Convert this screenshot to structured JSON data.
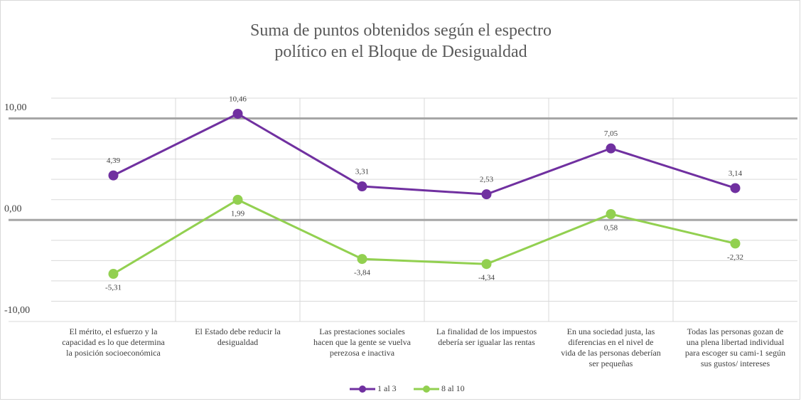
{
  "chart_data": {
    "type": "line",
    "title": "Suma de puntos obtenidos según el espectro político en el Bloque de Desigualdad",
    "categories": [
      "El mérito, el esfuerzo y la capacidad es lo que determina la posición socioeconómica",
      "El Estado debe reducir la desigualdad",
      "Las prestaciones sociales hacen que la gente se vuelva perezosa e inactiva",
      "La finalidad de los impuestos debería ser igualar las rentas",
      "En una sociedad justa, las diferencias en el nivel de vida de las personas deberían ser pequeñas",
      "Todas las personas gozan de una plena libertad individual para escoger su cami-1 según sus gustos/ intereses"
    ],
    "series": [
      {
        "name": "1 al 3",
        "color": "#7030a0",
        "values": [
          4.39,
          10.46,
          3.31,
          2.53,
          7.05,
          3.14
        ],
        "value_labels": [
          "4,39",
          "10,46",
          "3,31",
          "2,53",
          "7,05",
          "3,14"
        ]
      },
      {
        "name": "8 al 10",
        "color": "#92d050",
        "values": [
          -5.31,
          1.99,
          -3.84,
          -4.34,
          0.58,
          -2.32
        ],
        "value_labels": [
          "-5,31",
          "1,99",
          "-3,84",
          "-4,34",
          "0,58",
          "-2,32"
        ]
      }
    ],
    "ylim": [
      -10,
      12
    ],
    "yticks": [
      {
        "value": -10,
        "label": "-10,00"
      },
      {
        "value": 0,
        "label": "0,00"
      },
      {
        "value": 10,
        "label": "10,00"
      }
    ],
    "minor_yticks": [
      -8,
      -6,
      -4,
      -2,
      2,
      4,
      6,
      8,
      12
    ],
    "grid": true,
    "legend": "bottom"
  }
}
